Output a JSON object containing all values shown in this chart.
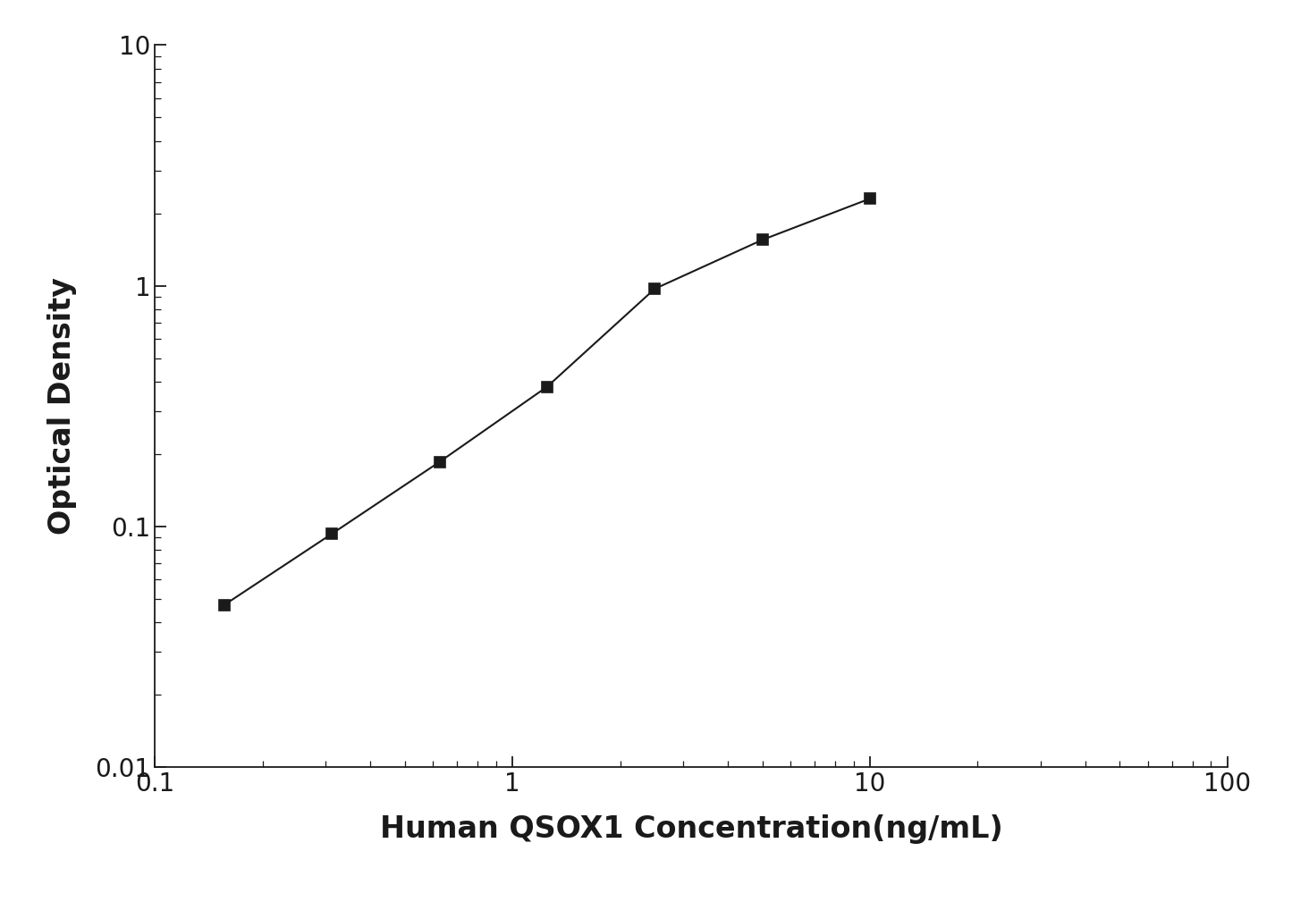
{
  "x": [
    0.156,
    0.3125,
    0.625,
    1.25,
    2.5,
    5.0,
    10.0
  ],
  "y": [
    0.047,
    0.093,
    0.185,
    0.38,
    0.97,
    1.55,
    2.3
  ],
  "line_color": "#1a1a1a",
  "marker": "s",
  "marker_color": "#1a1a1a",
  "marker_size": 9,
  "line_width": 1.5,
  "xlabel": "Human QSOX1 Concentration(ng/mL)",
  "ylabel": "Optical Density",
  "xlim": [
    0.1,
    100
  ],
  "ylim": [
    0.01,
    10
  ],
  "xlabel_fontsize": 24,
  "ylabel_fontsize": 24,
  "tick_labelsize": 20,
  "background_color": "#ffffff",
  "spine_color": "#1a1a1a"
}
